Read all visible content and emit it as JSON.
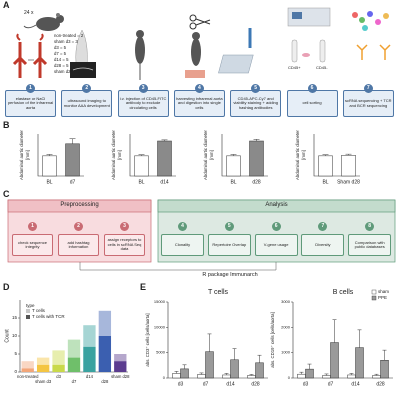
{
  "panel_a": {
    "label": "A",
    "count": "24 x",
    "groups": [
      "non-treated = 2",
      "sham d3 = 3",
      "d3 = 5",
      "d7 = 5",
      "d14 = 5",
      "d28 = 5",
      "sham d28 = 2"
    ],
    "steps": [
      {
        "number": 1,
        "text": "elastase or NaCl perfusion of the infrarenal aorta"
      },
      {
        "number": 2,
        "text": "ultrasound imaging to monitor AAA development"
      },
      {
        "number": 3,
        "text": "i.v. injection of CD45-FITC antibody to exclude circulating cells"
      },
      {
        "number": 4,
        "text": "harvesting infrarenal aorta and digestion into single cells"
      },
      {
        "number": 5,
        "text": "CD45-APC-Cy7 and viability staining + adding hashtag antibodies"
      },
      {
        "number": 6,
        "text": "cell sorting"
      },
      {
        "number": 7,
        "text": "scRNA sequencing + TCR and BCR sequencing"
      }
    ],
    "sort_labels": [
      "CD45+",
      "CD45-"
    ]
  },
  "panel_b": {
    "label": "B",
    "y_label": [
      "Abdominal aortic diameter",
      "[mm]"
    ],
    "charts": [
      {
        "type": "bar",
        "categories": [
          "BL",
          "d7"
        ],
        "values": [
          0.72,
          1.15
        ],
        "errors": [
          0.05,
          0.18
        ],
        "colors": [
          "#ffffff",
          "#8a8a8a"
        ],
        "ylim": [
          0,
          1.5
        ]
      },
      {
        "type": "bar",
        "categories": [
          "BL",
          "d14"
        ],
        "values": [
          0.72,
          1.25
        ],
        "errors": [
          0.04,
          0.04
        ],
        "colors": [
          "#ffffff",
          "#8a8a8a"
        ],
        "ylim": [
          0,
          1.5
        ]
      },
      {
        "type": "bar",
        "categories": [
          "BL",
          "d28"
        ],
        "values": [
          0.72,
          1.25
        ],
        "errors": [
          0.05,
          0.06
        ],
        "colors": [
          "#ffffff",
          "#8a8a8a"
        ],
        "ylim": [
          0,
          1.5
        ]
      },
      {
        "type": "bar",
        "categories": [
          "BL",
          "Sham d28"
        ],
        "values": [
          0.72,
          0.74
        ],
        "errors": [
          0.04,
          0.04
        ],
        "colors": [
          "#ffffff",
          "#ffffff"
        ],
        "ylim": [
          0,
          1.5
        ]
      }
    ]
  },
  "panel_c": {
    "label": "C",
    "preprocessing": {
      "title": "Preprocessing",
      "steps": [
        {
          "number": 1,
          "text": "check sequence integrity"
        },
        {
          "number": 2,
          "text": "add hashtag information"
        },
        {
          "number": 3,
          "text": "assign receptors to cells in scRNA Seq data"
        }
      ]
    },
    "analysis": {
      "title": "Analysis",
      "steps": [
        {
          "number": 4,
          "text": "Clonality"
        },
        {
          "number": 5,
          "text": "Repertoire Overlap"
        },
        {
          "number": 6,
          "text": "V-gene usage"
        },
        {
          "number": 7,
          "text": "Diversity"
        },
        {
          "number": 8,
          "text": "Comparison with public databases"
        }
      ]
    },
    "footer": "R package Immunarch"
  },
  "panel_d": {
    "label": "D",
    "chart_data": {
      "type": "stacked-bar",
      "y_label": "Count",
      "legend_title": "type",
      "categories": [
        "non-treated",
        "sham d3",
        "d3",
        "d7",
        "d14",
        "d28",
        "sham d28"
      ],
      "category_colors": [
        "#f2a679",
        "#f4c542",
        "#c9d94a",
        "#6fbf6a",
        "#3aa2a0",
        "#3b5fb0",
        "#5b3c8f"
      ],
      "series": [
        {
          "name": "T cells",
          "color": "#c8c8c8",
          "values": [
            2,
            2,
            4,
            5,
            6,
            7,
            2
          ]
        },
        {
          "name": "T cells with TCR",
          "color": "#555555",
          "values": [
            1,
            2,
            2,
            4,
            7,
            10,
            3
          ]
        }
      ],
      "ylim": [
        0,
        20
      ],
      "yticks": [
        0,
        5,
        10,
        15
      ]
    }
  },
  "panel_e": {
    "label": "E",
    "legend": [
      "sham",
      "PPE"
    ],
    "charts": [
      {
        "type": "grouped-bar",
        "title": "T cells",
        "y_label": "abs. CD3⁺ cells [cells/aorta]",
        "categories": [
          "d3",
          "d7",
          "d14",
          "d28"
        ],
        "series": [
          {
            "name": "sham",
            "color": "#ffffff",
            "values": [
              900,
              700,
              600,
              500
            ],
            "errors": [
              400,
              300,
              300,
              200
            ]
          },
          {
            "name": "PPE",
            "color": "#9a9a9a",
            "values": [
              1800,
              5200,
              3600,
              3000
            ],
            "errors": [
              800,
              3500,
              2200,
              1500
            ]
          }
        ],
        "ylim": [
          0,
          15000
        ],
        "yticks": [
          0,
          5000,
          10000,
          15000
        ]
      },
      {
        "type": "grouped-bar",
        "title": "B cells",
        "y_label": "abs. CD19⁺ cells [cells/aorta]",
        "categories": [
          "d3",
          "d7",
          "d14",
          "d28"
        ],
        "series": [
          {
            "name": "sham",
            "color": "#ffffff",
            "values": [
              150,
              100,
              120,
              100
            ],
            "errors": [
              80,
              60,
              60,
              50
            ]
          },
          {
            "name": "PPE",
            "color": "#9a9a9a",
            "values": [
              350,
              1400,
              1200,
              700
            ],
            "errors": [
              200,
              900,
              700,
              400
            ]
          }
        ],
        "ylim": [
          0,
          3000
        ],
        "yticks": [
          0,
          1000,
          2000,
          3000
        ]
      }
    ]
  }
}
